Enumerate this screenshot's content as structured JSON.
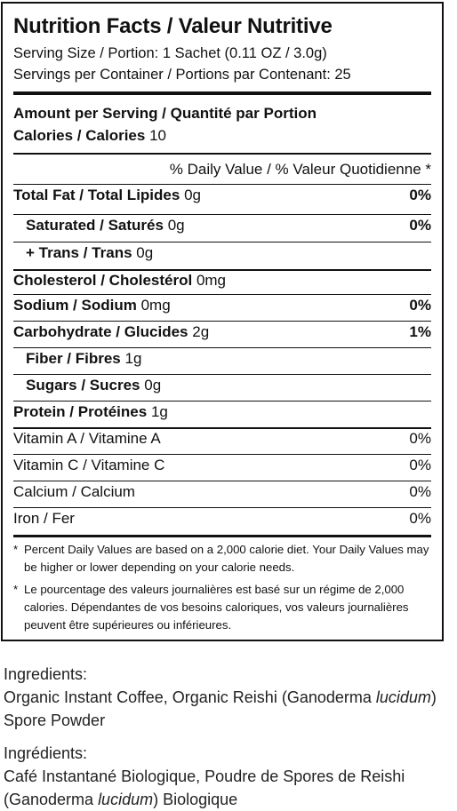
{
  "label": {
    "title": "Nutrition Facts / Valeur Nutritive",
    "serving_size": "Serving Size / Portion: 1 Sachet (0.11 OZ / 3.0g)",
    "servings_per_container": "Servings per Container / Portions par Contenant: 25",
    "amount_per_serving": "Amount per Serving / Quantité par Portion",
    "calories_label": "Calories / Calories",
    "calories_value": "10",
    "dv_header": "% Daily Value / % Valeur Quotidienne *",
    "nutrients": [
      {
        "name": "Total Fat / Total Lipides",
        "amount": "0g",
        "dv": "0%"
      },
      {
        "name": "Saturated / Saturés",
        "amount": "0g",
        "dv": "0%"
      },
      {
        "name": "+ Trans / Trans",
        "amount": "0g",
        "dv": ""
      },
      {
        "name": "Cholesterol / Cholestérol",
        "amount": "0mg",
        "dv": ""
      },
      {
        "name": "Sodium / Sodium",
        "amount": "0mg",
        "dv": "0%"
      },
      {
        "name": "Carbohydrate / Glucides",
        "amount": "2g",
        "dv": "1%"
      },
      {
        "name": "Fiber / Fibres",
        "amount": "1g",
        "dv": ""
      },
      {
        "name": "Sugars / Sucres",
        "amount": "0g",
        "dv": ""
      },
      {
        "name": "Protein / Protéines",
        "amount": "1g",
        "dv": ""
      }
    ],
    "vitamins": [
      {
        "name": "Vitamin A / Vitamine A",
        "dv": "0%"
      },
      {
        "name": "Vitamin C / Vitamine C",
        "dv": "0%"
      },
      {
        "name": "Calcium / Calcium",
        "dv": "0%"
      },
      {
        "name": "Iron / Fer",
        "dv": "0%"
      }
    ],
    "footnote_en": "Percent Daily Values are based on a 2,000 calorie diet. Your Daily Values may be higher or lower depending on your calorie needs.",
    "footnote_fr": "Le pourcentage des valeurs journalières est basé sur un régime de 2,000 calories. Dépendantes de vos besoins caloriques, vos valeurs journalières peuvent être supérieures ou inférieures.",
    "asterisk": "*"
  },
  "ingredients_en": {
    "heading": "Ingredients:",
    "text_before": "Organic Instant Coffee, Organic Reishi (Ganoderma ",
    "italic": "lucidum",
    "text_after": ") Spore Powder"
  },
  "ingredients_fr": {
    "heading": "Ingrédients:",
    "text_before": "Café Instantané Biologique, Poudre de Spores de Reishi (Ganoderma ",
    "italic": "lucidum",
    "text_after": ") Biologique"
  }
}
